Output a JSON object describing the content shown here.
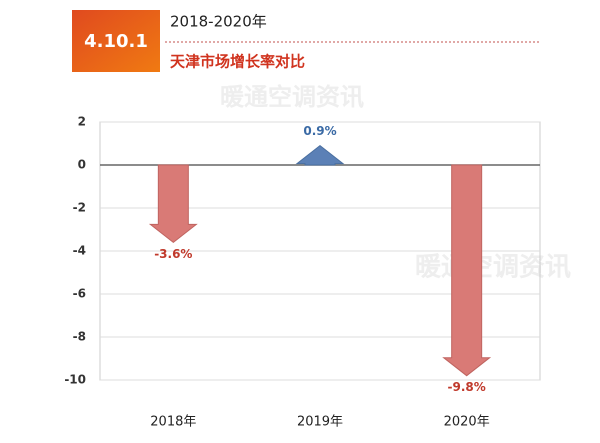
{
  "header": {
    "section": "4.10.1",
    "period": "2018-2020年",
    "watermark": "暖通空调资讯"
  },
  "chart_data": {
    "type": "arrow-bar",
    "title": "天津市场增长率对比",
    "categories": [
      "2018年",
      "2019年",
      "2020年"
    ],
    "values": [
      -3.6,
      0.9,
      -9.8
    ],
    "value_labels": [
      "-3.6%",
      "0.9%",
      "-9.8%"
    ],
    "colors": {
      "negative": "#d97a76",
      "positive": "#5b80b6"
    },
    "label_colors": {
      "negative": "#c0392b",
      "positive": "#3a6aa5"
    },
    "ylim": [
      -10,
      2
    ],
    "yticks": [
      2,
      0,
      -2,
      -4,
      -6,
      -8,
      -10
    ],
    "grid": true
  }
}
